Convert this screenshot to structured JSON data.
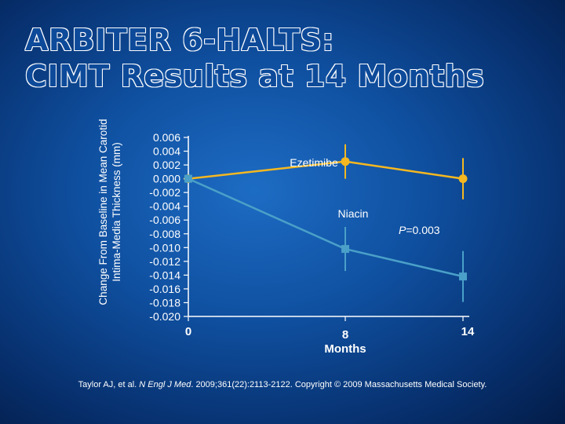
{
  "title": {
    "line1": "ARBITER 6-HALTS:",
    "line2": "CIMT Results at 14 Months"
  },
  "chart_data": {
    "type": "line",
    "ylabel_line1": "Change From Baseline in Mean Carotid",
    "ylabel_line2": "Intima-Media Thickness (mm)",
    "xlabel": "Months",
    "ylim": [
      -0.02,
      0.006
    ],
    "xlim": [
      0,
      14
    ],
    "y_ticks": [
      "0.006",
      "0.004",
      "0.002",
      "0.000",
      "-0.002",
      "-0.004",
      "-0.006",
      "-0.008",
      "-0.010",
      "-0.012",
      "-0.014",
      "-0.016",
      "-0.018",
      "-0.020"
    ],
    "x_ticks": [
      "0",
      "8",
      "14"
    ],
    "series": [
      {
        "name": "Ezetimibe",
        "color": "#f5b820",
        "marker": "circle",
        "x": [
          0,
          8,
          14
        ],
        "y": [
          0.0,
          0.0025,
          0.0
        ],
        "err": [
          0,
          0.0025,
          0.003
        ]
      },
      {
        "name": "Niacin",
        "color": "#4aa0c8",
        "marker": "square",
        "x": [
          0,
          8,
          14
        ],
        "y": [
          0.0,
          -0.0102,
          -0.0142
        ],
        "err": [
          0,
          0.0032,
          0.0037
        ]
      }
    ],
    "annotation": {
      "prefix": "P",
      "text": "=0.003"
    }
  },
  "footer": {
    "citation_authors": "Taylor AJ, et al. ",
    "citation_journal": "N Engl J Med",
    "citation_rest": ". 2009;361(22):2113-2122. Copyright © 2009 Massachusetts Medical Society."
  }
}
